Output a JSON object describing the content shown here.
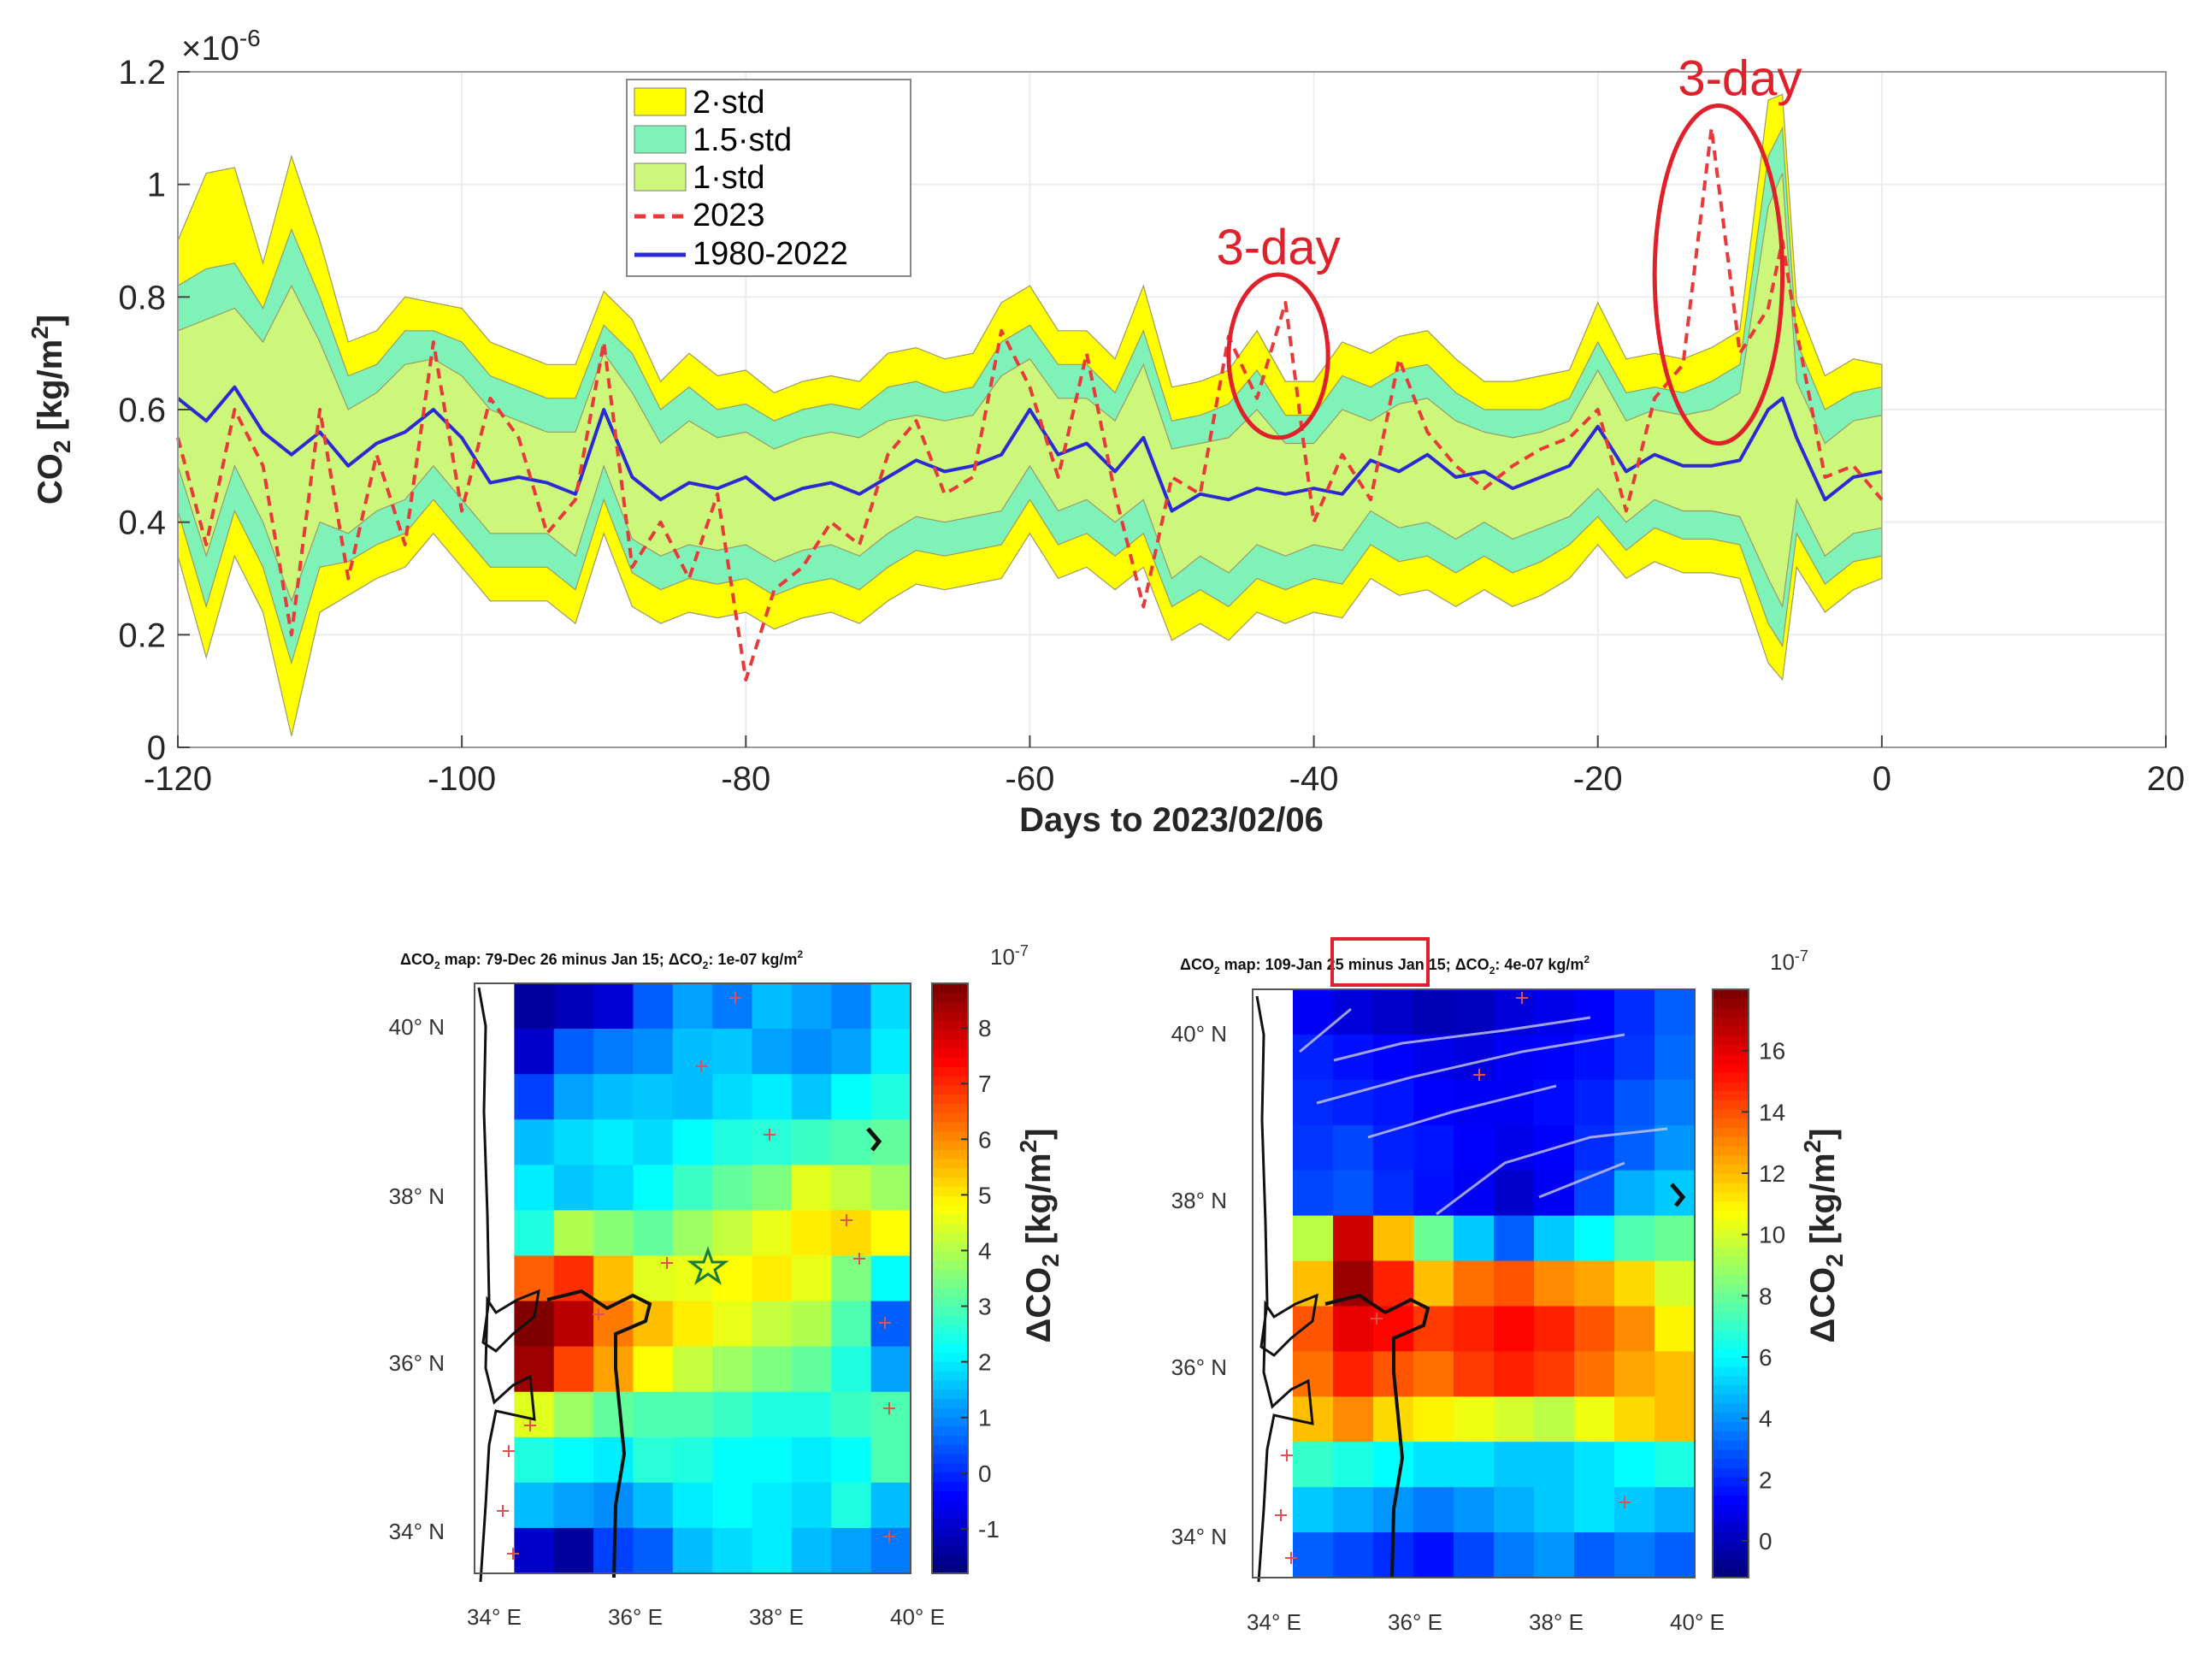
{
  "chart_data": [
    {
      "type": "line",
      "title": "",
      "xlabel": "Days to 2023/02/06",
      "ylabel": "CO2 [kg/m2]",
      "ylabel_parts": {
        "base": "CO",
        "sub": "2",
        "unit_pre": " [kg/m",
        "sup": "2",
        "unit_post": "]"
      },
      "y_exponent": {
        "base": "×10",
        "power": "-6"
      },
      "xlim": [
        -120,
        20
      ],
      "ylim": [
        0,
        1.2
      ],
      "xticks": [
        "-120",
        "-100",
        "-80",
        "-60",
        "-40",
        "-20",
        "0",
        "20"
      ],
      "yticks": [
        "0",
        "0.2",
        "0.4",
        "0.6",
        "0.8",
        "1",
        "1.2"
      ],
      "legend_position": "top-left",
      "legend": [
        "2·std",
        "1.5·std",
        "1·std",
        "2023",
        "1980-2022"
      ],
      "colors": {
        "band2": "#ffff00",
        "band15": "#7ff2b8",
        "band1": "#cdf77b",
        "series2023": "#e83a3a",
        "series_mean": "#2b2bd6",
        "annotation": "#e0202a"
      },
      "x": [
        -120,
        -118,
        -116,
        -114,
        -112,
        -110,
        -108,
        -106,
        -104,
        -102,
        -100,
        -98,
        -96,
        -94,
        -92,
        -90,
        -88,
        -86,
        -84,
        -82,
        -80,
        -78,
        -76,
        -74,
        -72,
        -70,
        -68,
        -66,
        -64,
        -62,
        -60,
        -58,
        -56,
        -54,
        -52,
        -50,
        -48,
        -46,
        -44,
        -42,
        -40,
        -38,
        -36,
        -34,
        -32,
        -30,
        -28,
        -26,
        -24,
        -22,
        -20,
        -18,
        -16,
        -14,
        -12,
        -10,
        -8,
        -7,
        -6,
        -4,
        -2,
        0
      ],
      "series": [
        {
          "name": "1980-2022",
          "values": [
            0.62,
            0.58,
            0.64,
            0.56,
            0.52,
            0.56,
            0.5,
            0.54,
            0.56,
            0.6,
            0.55,
            0.47,
            0.48,
            0.47,
            0.45,
            0.6,
            0.48,
            0.44,
            0.47,
            0.46,
            0.48,
            0.44,
            0.46,
            0.47,
            0.45,
            0.48,
            0.51,
            0.49,
            0.5,
            0.52,
            0.6,
            0.52,
            0.54,
            0.49,
            0.55,
            0.42,
            0.45,
            0.44,
            0.46,
            0.45,
            0.46,
            0.45,
            0.51,
            0.49,
            0.52,
            0.48,
            0.49,
            0.46,
            0.48,
            0.5,
            0.57,
            0.49,
            0.52,
            0.5,
            0.5,
            0.51,
            0.6,
            0.62,
            0.55,
            0.44,
            0.48,
            0.49
          ]
        },
        {
          "name": "2023",
          "values": [
            0.55,
            0.36,
            0.6,
            0.5,
            0.2,
            0.6,
            0.3,
            0.52,
            0.36,
            0.72,
            0.42,
            0.62,
            0.55,
            0.38,
            0.44,
            0.72,
            0.32,
            0.4,
            0.3,
            0.45,
            0.12,
            0.28,
            0.32,
            0.4,
            0.36,
            0.52,
            0.58,
            0.45,
            0.48,
            0.74,
            0.64,
            0.48,
            0.7,
            0.45,
            0.25,
            0.48,
            0.45,
            0.73,
            0.62,
            0.79,
            0.4,
            0.52,
            0.44,
            0.69,
            0.56,
            0.5,
            0.46,
            0.5,
            0.53,
            0.55,
            0.6,
            0.42,
            0.62,
            0.68,
            1.1,
            0.7,
            0.78,
            0.9,
            0.74,
            0.48,
            0.5,
            0.44
          ]
        },
        {
          "name": "1·std upper",
          "values": [
            0.74,
            0.76,
            0.78,
            0.72,
            0.82,
            0.72,
            0.6,
            0.63,
            0.68,
            0.69,
            0.66,
            0.6,
            0.58,
            0.56,
            0.56,
            0.7,
            0.63,
            0.54,
            0.58,
            0.55,
            0.56,
            0.53,
            0.55,
            0.56,
            0.55,
            0.58,
            0.59,
            0.58,
            0.59,
            0.66,
            0.69,
            0.62,
            0.62,
            0.58,
            0.68,
            0.53,
            0.54,
            0.55,
            0.6,
            0.54,
            0.54,
            0.6,
            0.58,
            0.61,
            0.62,
            0.58,
            0.56,
            0.55,
            0.56,
            0.58,
            0.67,
            0.58,
            0.6,
            0.59,
            0.6,
            0.63,
            0.96,
            1.02,
            0.65,
            0.54,
            0.58,
            0.59
          ]
        },
        {
          "name": "1·std lower",
          "values": [
            0.5,
            0.34,
            0.5,
            0.4,
            0.26,
            0.4,
            0.38,
            0.42,
            0.44,
            0.5,
            0.44,
            0.38,
            0.38,
            0.38,
            0.34,
            0.5,
            0.37,
            0.34,
            0.36,
            0.35,
            0.36,
            0.33,
            0.35,
            0.36,
            0.34,
            0.38,
            0.41,
            0.4,
            0.41,
            0.42,
            0.5,
            0.42,
            0.44,
            0.4,
            0.44,
            0.3,
            0.34,
            0.31,
            0.36,
            0.34,
            0.36,
            0.35,
            0.42,
            0.39,
            0.4,
            0.37,
            0.4,
            0.37,
            0.39,
            0.41,
            0.46,
            0.4,
            0.44,
            0.42,
            0.42,
            0.41,
            0.3,
            0.25,
            0.44,
            0.34,
            0.38,
            0.39
          ]
        },
        {
          "name": "1.5·std upper",
          "values": [
            0.82,
            0.85,
            0.86,
            0.78,
            0.92,
            0.8,
            0.66,
            0.68,
            0.74,
            0.74,
            0.72,
            0.66,
            0.64,
            0.62,
            0.62,
            0.75,
            0.7,
            0.6,
            0.64,
            0.6,
            0.61,
            0.58,
            0.6,
            0.61,
            0.6,
            0.64,
            0.65,
            0.63,
            0.64,
            0.72,
            0.75,
            0.68,
            0.68,
            0.63,
            0.74,
            0.58,
            0.59,
            0.61,
            0.67,
            0.59,
            0.59,
            0.66,
            0.64,
            0.67,
            0.68,
            0.63,
            0.6,
            0.6,
            0.6,
            0.62,
            0.72,
            0.63,
            0.64,
            0.63,
            0.65,
            0.68,
            1.05,
            1.1,
            0.72,
            0.6,
            0.63,
            0.64
          ]
        },
        {
          "name": "1.5·std lower",
          "values": [
            0.42,
            0.25,
            0.42,
            0.32,
            0.15,
            0.32,
            0.33,
            0.36,
            0.38,
            0.44,
            0.38,
            0.32,
            0.32,
            0.32,
            0.28,
            0.44,
            0.31,
            0.28,
            0.3,
            0.29,
            0.3,
            0.27,
            0.29,
            0.3,
            0.28,
            0.32,
            0.35,
            0.34,
            0.35,
            0.36,
            0.44,
            0.36,
            0.38,
            0.34,
            0.38,
            0.25,
            0.28,
            0.25,
            0.3,
            0.28,
            0.3,
            0.29,
            0.36,
            0.33,
            0.34,
            0.31,
            0.34,
            0.31,
            0.33,
            0.36,
            0.41,
            0.35,
            0.39,
            0.37,
            0.37,
            0.36,
            0.22,
            0.18,
            0.38,
            0.29,
            0.33,
            0.34
          ]
        },
        {
          "name": "2·std upper",
          "values": [
            0.9,
            1.02,
            1.03,
            0.86,
            1.05,
            0.9,
            0.72,
            0.74,
            0.8,
            0.79,
            0.78,
            0.72,
            0.7,
            0.68,
            0.68,
            0.81,
            0.76,
            0.65,
            0.7,
            0.66,
            0.67,
            0.63,
            0.65,
            0.66,
            0.65,
            0.7,
            0.71,
            0.69,
            0.7,
            0.79,
            0.82,
            0.74,
            0.74,
            0.69,
            0.82,
            0.64,
            0.65,
            0.67,
            0.74,
            0.65,
            0.65,
            0.72,
            0.7,
            0.73,
            0.74,
            0.69,
            0.65,
            0.65,
            0.66,
            0.67,
            0.79,
            0.69,
            0.7,
            0.69,
            0.71,
            0.74,
            1.15,
            1.16,
            0.79,
            0.66,
            0.69,
            0.68
          ]
        },
        {
          "name": "2·std lower",
          "values": [
            0.34,
            0.16,
            0.34,
            0.24,
            0.02,
            0.24,
            0.27,
            0.3,
            0.32,
            0.38,
            0.32,
            0.26,
            0.26,
            0.26,
            0.22,
            0.38,
            0.25,
            0.22,
            0.24,
            0.23,
            0.24,
            0.21,
            0.23,
            0.24,
            0.22,
            0.26,
            0.29,
            0.28,
            0.29,
            0.3,
            0.38,
            0.3,
            0.32,
            0.28,
            0.32,
            0.19,
            0.22,
            0.19,
            0.24,
            0.22,
            0.24,
            0.23,
            0.3,
            0.27,
            0.28,
            0.25,
            0.28,
            0.25,
            0.27,
            0.3,
            0.36,
            0.3,
            0.33,
            0.31,
            0.31,
            0.3,
            0.15,
            0.12,
            0.32,
            0.24,
            0.28,
            0.3
          ]
        }
      ],
      "annotations": [
        {
          "text": "3-day",
          "x_range": [
            -46,
            -39
          ],
          "y_range": [
            0.55,
            0.84
          ]
        },
        {
          "text": "3-day",
          "x_range": [
            -16,
            -7
          ],
          "y_range": [
            0.54,
            1.14
          ]
        }
      ]
    },
    {
      "type": "heatmap",
      "title_parts": {
        "pre": "ΔCO",
        "sub": "2",
        "mid": " map: 79-Dec 26 minus Jan 15; ΔCO",
        "sub2": "2",
        "post": ": 1e-07 kg/m",
        "sup": "2"
      },
      "xlabel_ticks": [
        "34° E",
        "36° E",
        "38° E",
        "40° E"
      ],
      "ylabel_ticks": [
        "40° N",
        "38° N",
        "36° N",
        "34° N"
      ],
      "colorbar": {
        "label_pre": "ΔCO",
        "label_sub": "2",
        "label_unit_pre": " [kg/m",
        "label_sup": "2",
        "label_unit_post": "]",
        "exponent": "10",
        "exponent_power": "-7",
        "range": [
          -1.8,
          8.8
        ],
        "ticks": [
          "-1",
          "0",
          "1",
          "2",
          "3",
          "4",
          "5",
          "6",
          "7",
          "8"
        ]
      },
      "grid": [
        [
          null,
          -1.5,
          -1.2,
          -0.9,
          0.5,
          1.2,
          0.8,
          1.5,
          1.2,
          0.9,
          1.8
        ],
        [
          null,
          -1.0,
          0.5,
          0.8,
          1.0,
          1.5,
          1.6,
          1.2,
          1.0,
          1.2,
          2.0
        ],
        [
          null,
          0.2,
          1.2,
          1.5,
          1.6,
          1.5,
          1.8,
          2.0,
          1.6,
          2.2,
          2.5
        ],
        [
          null,
          1.5,
          1.8,
          2.0,
          1.8,
          2.2,
          2.5,
          2.6,
          2.8,
          3.0,
          3.2
        ],
        [
          null,
          2.0,
          1.6,
          1.8,
          2.2,
          2.8,
          3.2,
          3.5,
          4.5,
          4.2,
          3.8
        ],
        [
          null,
          2.5,
          4.0,
          3.6,
          3.2,
          3.8,
          4.2,
          4.6,
          5.0,
          5.2,
          4.8
        ],
        [
          null,
          6.5,
          7.0,
          5.5,
          4.5,
          4.6,
          4.8,
          5.0,
          4.6,
          3.5,
          2.2
        ],
        [
          null,
          8.8,
          8.2,
          6.2,
          5.5,
          5.0,
          4.6,
          4.2,
          4.0,
          3.0,
          0.5
        ],
        [
          null,
          8.5,
          6.8,
          5.8,
          4.8,
          4.2,
          3.8,
          3.5,
          3.2,
          2.5,
          1.2
        ],
        [
          null,
          4.5,
          3.8,
          3.2,
          3.0,
          3.0,
          2.8,
          2.5,
          2.5,
          2.8,
          3.0
        ],
        [
          null,
          2.5,
          2.2,
          2.0,
          2.6,
          2.5,
          2.2,
          2.2,
          2.0,
          2.2,
          3.0
        ],
        [
          null,
          1.5,
          1.2,
          1.0,
          1.5,
          2.0,
          2.2,
          2.0,
          1.8,
          2.5,
          1.5
        ],
        [
          null,
          -1.0,
          -1.5,
          0.2,
          0.5,
          1.5,
          1.8,
          2.0,
          1.5,
          1.2,
          0.8
        ]
      ]
    },
    {
      "type": "heatmap",
      "title_parts": {
        "pre": "ΔCO",
        "sub": "2",
        "mid": " map: 109-Jan 25 minus Jan 15; ΔCO",
        "sub2": "2",
        "post": ": 4e-07 kg/m",
        "sup": "2"
      },
      "xlabel_ticks": [
        "34° E",
        "36° E",
        "38° E",
        "40° E"
      ],
      "ylabel_ticks": [
        "40° N",
        "38° N",
        "36° N",
        "34° N"
      ],
      "colorbar": {
        "label_pre": "ΔCO",
        "label_sub": "2",
        "label_unit_pre": " [kg/m",
        "label_sup": "2",
        "label_unit_post": "]",
        "exponent": "10",
        "exponent_power": "-7",
        "range": [
          -1.2,
          18.0
        ],
        "ticks": [
          "0",
          "2",
          "4",
          "6",
          "8",
          "10",
          "12",
          "14",
          "16"
        ]
      },
      "grid": [
        [
          null,
          1.0,
          0.5,
          0.2,
          -0.2,
          0.0,
          0.5,
          0.8,
          1.2,
          2.0,
          3.0
        ],
        [
          null,
          1.8,
          1.5,
          1.2,
          0.8,
          0.6,
          1.0,
          1.2,
          1.5,
          2.2,
          3.2
        ],
        [
          null,
          2.0,
          1.8,
          1.6,
          1.2,
          1.0,
          1.0,
          1.4,
          1.8,
          2.8,
          3.5
        ],
        [
          null,
          2.2,
          2.5,
          1.8,
          1.6,
          1.2,
          0.8,
          1.2,
          2.0,
          3.0,
          4.0
        ],
        [
          null,
          2.5,
          2.8,
          2.0,
          1.5,
          1.0,
          0.2,
          1.0,
          2.5,
          4.5,
          5.0
        ],
        [
          null,
          9.5,
          16.5,
          12.0,
          8.0,
          5.0,
          3.0,
          5.0,
          6.0,
          7.5,
          8.0
        ],
        [
          null,
          12.0,
          17.5,
          15.0,
          12.0,
          13.5,
          14.0,
          13.0,
          12.5,
          11.5,
          10.0
        ],
        [
          null,
          14.0,
          16.0,
          15.5,
          14.5,
          15.0,
          15.5,
          15.0,
          14.0,
          13.0,
          11.0
        ],
        [
          null,
          13.5,
          15.0,
          14.0,
          13.5,
          14.5,
          15.0,
          14.5,
          13.5,
          12.5,
          12.0
        ],
        [
          null,
          12.0,
          13.0,
          11.5,
          11.0,
          10.5,
          10.0,
          9.5,
          10.5,
          11.5,
          12.0
        ],
        [
          null,
          7.0,
          6.5,
          6.0,
          5.5,
          5.5,
          5.0,
          5.0,
          5.5,
          6.0,
          6.5
        ],
        [
          null,
          5.0,
          4.5,
          4.0,
          3.5,
          4.0,
          4.5,
          5.0,
          5.5,
          5.0,
          4.5
        ],
        [
          null,
          3.0,
          2.5,
          2.0,
          1.5,
          2.5,
          3.5,
          4.0,
          3.0,
          3.5,
          3.0
        ]
      ]
    }
  ]
}
